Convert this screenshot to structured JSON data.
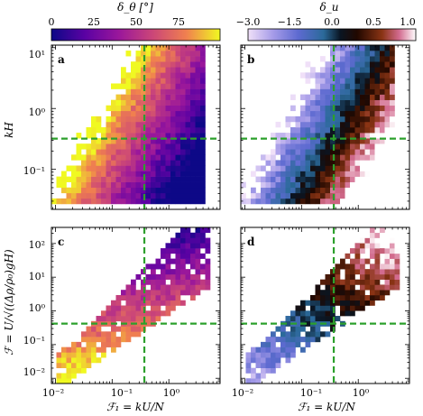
{
  "colorbars": [
    {
      "label": "δ_θ [°]",
      "ticks": [
        "0",
        "25",
        "50",
        "75"
      ],
      "colormap": "plasma"
    },
    {
      "label": "δ_u",
      "ticks": [
        "−3.0",
        "−1.5",
        "0.0",
        "0.5",
        "1.0"
      ],
      "colormap": "berlin"
    }
  ],
  "axes": {
    "top_ylabel": "kH",
    "bottom_ylabel": "ℱ = U/√((Δρ/ρ₀)gH)",
    "xlabel": "ℱ₁ = kU/N",
    "top_yticks": [
      "10¹",
      "10⁰",
      "10⁻¹"
    ],
    "bottom_yticks": [
      "10²",
      "10¹",
      "10⁰",
      "10⁻¹",
      "10⁻²"
    ],
    "xticks": [
      "10⁻²",
      "10⁻¹",
      "10⁰"
    ]
  },
  "chart_data": [
    {
      "type": "heatmap",
      "panel": "a",
      "colormap": "plasma",
      "clim": [
        0,
        90
      ],
      "xscale": "log",
      "yscale": "log",
      "xlim": [
        0.0085,
        8
      ],
      "ylim": [
        0.022,
        11
      ],
      "reference_lines": {
        "x": 0.37,
        "y": 0.32,
        "color": "#2ca02c",
        "style": "dashed"
      },
      "trend": "high values (yellow) at low ℱ₁, low values (purple) at ℱ₁ > 1"
    },
    {
      "type": "heatmap",
      "panel": "b",
      "colormap": "berlin",
      "clim": [
        -3.0,
        1.0
      ],
      "xscale": "log",
      "yscale": "log",
      "xlim": [
        0.0085,
        8
      ],
      "ylim": [
        0.022,
        11
      ],
      "reference_lines": {
        "x": 0.37,
        "y": 0.32,
        "color": "#2ca02c",
        "style": "dashed"
      },
      "trend": "negative (blue) at ℱ₁ < 0.3, positive (orange/pink) at larger ℱ₁"
    },
    {
      "type": "heatmap",
      "panel": "c",
      "colormap": "plasma",
      "clim": [
        0,
        90
      ],
      "xscale": "log",
      "yscale": "log",
      "xlim": [
        0.0085,
        8
      ],
      "ylim": [
        0.007,
        300
      ],
      "reference_lines": {
        "x": 0.37,
        "y": 0.42,
        "color": "#2ca02c",
        "style": "dashed"
      },
      "trend": "band rising from ℱ≈0.01 at ℱ₁≈0.02 to ℱ≈100 at ℱ₁≈2"
    },
    {
      "type": "heatmap",
      "panel": "d",
      "colormap": "berlin",
      "clim": [
        -3.0,
        1.0
      ],
      "xscale": "log",
      "yscale": "log",
      "xlim": [
        0.0085,
        8
      ],
      "ylim": [
        0.007,
        300
      ],
      "reference_lines": {
        "x": 0.37,
        "y": 0.42,
        "color": "#2ca02c",
        "style": "dashed"
      },
      "trend": "light blue at low ℱ₁, pink/white at ℱ₁ > 0.5 with ℱ > 1"
    }
  ]
}
